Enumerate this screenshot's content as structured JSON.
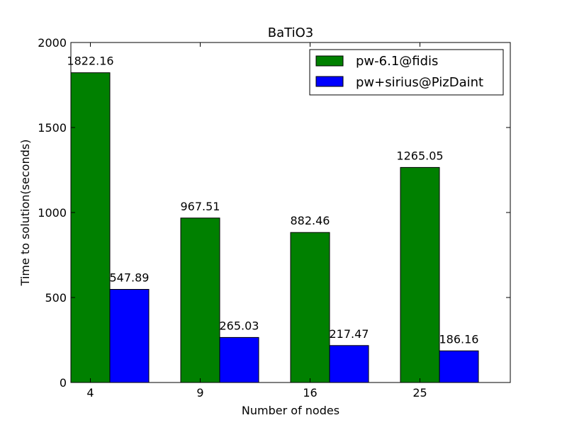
{
  "chart_data": {
    "type": "bar",
    "title": "BaTiO3",
    "xlabel": "Number of nodes",
    "ylabel": "Time to solution(seconds)",
    "categories": [
      "4",
      "9",
      "16",
      "25"
    ],
    "ylim": [
      0,
      2000
    ],
    "yticks": [
      "0",
      "500",
      "1000",
      "1500",
      "2000"
    ],
    "series": [
      {
        "name": "pw-6.1@fidis",
        "color": "#008000",
        "values": [
          1822.16,
          967.51,
          882.46,
          1265.05
        ],
        "labels": [
          "1822.16",
          "967.51",
          "882.46",
          "1265.05"
        ]
      },
      {
        "name": "pw+sirius@PizDaint",
        "color": "#0000ff",
        "values": [
          547.89,
          265.03,
          217.47,
          186.16
        ],
        "labels": [
          "547.89",
          "265.03",
          "217.47",
          "186.16"
        ]
      }
    ],
    "legend": "top-right",
    "grid": false
  }
}
